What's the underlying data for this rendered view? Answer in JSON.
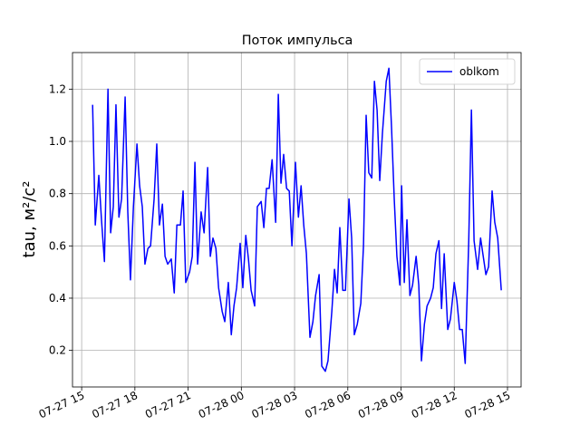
{
  "chart_data": {
    "type": "line",
    "title": "Поток импульса",
    "ylabel": "tau, м²/с²",
    "x": [
      "07-27 15:37",
      "07-27 15:46",
      "07-27 15:58",
      "07-27 16:07",
      "07-27 16:17",
      "07-27 16:29",
      "07-27 16:38",
      "07-27 16:47",
      "07-27 16:56",
      "07-27 17:06",
      "07-27 17:15",
      "07-27 17:27",
      "07-27 17:36",
      "07-27 17:45",
      "07-27 17:55",
      "07-27 18:07",
      "07-27 18:16",
      "07-27 18:25",
      "07-27 18:34",
      "07-27 18:44",
      "07-27 18:53",
      "07-27 19:05",
      "07-27 19:14",
      "07-27 19:23",
      "07-27 19:33",
      "07-27 19:42",
      "07-27 19:51",
      "07-27 20:03",
      "07-27 20:13",
      "07-27 20:22",
      "07-27 20:34",
      "07-27 20:43",
      "07-27 20:52",
      "07-27 21:05",
      "07-27 21:14",
      "07-27 21:23",
      "07-27 21:32",
      "07-27 21:44",
      "07-27 21:54",
      "07-27 22:06",
      "07-27 22:15",
      "07-27 22:24",
      "07-27 22:34",
      "07-27 22:43",
      "07-27 22:55",
      "07-27 23:04",
      "07-27 23:16",
      "07-27 23:26",
      "07-27 23:35",
      "07-27 23:44",
      "07-27 23:56",
      "07-28 00:05",
      "07-28 00:15",
      "07-28 00:24",
      "07-28 00:33",
      "07-28 00:45",
      "07-28 00:54",
      "07-28 01:07",
      "07-28 01:16",
      "07-28 01:25",
      "07-28 01:34",
      "07-28 01:44",
      "07-28 01:56",
      "07-28 02:05",
      "07-28 02:14",
      "07-28 02:23",
      "07-28 02:33",
      "07-28 02:42",
      "07-28 02:51",
      "07-28 03:03",
      "07-28 03:13",
      "07-28 03:22",
      "07-28 03:31",
      "07-28 03:40",
      "07-28 03:52",
      "07-28 04:02",
      "07-28 04:11",
      "07-28 04:23",
      "07-28 04:32",
      "07-28 04:44",
      "07-28 04:53",
      "07-28 05:06",
      "07-28 05:15",
      "07-28 05:24",
      "07-28 05:33",
      "07-28 05:43",
      "07-28 05:52",
      "07-28 06:04",
      "07-28 06:13",
      "07-28 06:22",
      "07-28 06:32",
      "07-28 06:44",
      "07-28 06:53",
      "07-28 07:02",
      "07-28 07:11",
      "07-28 07:21",
      "07-28 07:30",
      "07-28 07:39",
      "07-28 07:48",
      "07-28 07:57",
      "07-28 08:10",
      "07-28 08:19",
      "07-28 08:28",
      "07-28 08:37",
      "07-28 08:46",
      "07-28 08:56",
      "07-28 09:02",
      "07-28 09:11",
      "07-28 09:20",
      "07-28 09:30",
      "07-28 09:39",
      "07-28 09:51",
      "07-28 10:00",
      "07-28 10:09",
      "07-28 10:19",
      "07-28 10:28",
      "07-28 10:40",
      "07-28 10:49",
      "07-28 10:58",
      "07-28 11:08",
      "07-28 11:17",
      "07-28 11:26",
      "07-28 11:38",
      "07-28 11:47",
      "07-28 12:00",
      "07-28 12:09",
      "07-28 12:18",
      "07-28 12:27",
      "07-28 12:37",
      "07-28 12:49",
      "07-28 12:58",
      "07-28 13:07",
      "07-28 13:19",
      "07-28 13:29",
      "07-28 13:38",
      "07-28 13:47",
      "07-28 13:56",
      "07-28 14:08",
      "07-28 14:17",
      "07-28 14:27",
      "07-28 14:39"
    ],
    "series": [
      {
        "name": "oblkom",
        "color": "#0000ff",
        "values": [
          1.14,
          0.68,
          0.87,
          0.7,
          0.54,
          1.2,
          0.65,
          0.75,
          1.14,
          0.71,
          0.78,
          1.17,
          0.73,
          0.47,
          0.75,
          0.99,
          0.83,
          0.75,
          0.53,
          0.59,
          0.6,
          0.78,
          0.99,
          0.68,
          0.76,
          0.56,
          0.53,
          0.55,
          0.42,
          0.68,
          0.68,
          0.81,
          0.46,
          0.5,
          0.56,
          0.92,
          0.53,
          0.73,
          0.65,
          0.9,
          0.56,
          0.63,
          0.59,
          0.44,
          0.35,
          0.31,
          0.46,
          0.26,
          0.37,
          0.44,
          0.61,
          0.44,
          0.64,
          0.55,
          0.43,
          0.37,
          0.75,
          0.77,
          0.67,
          0.82,
          0.82,
          0.93,
          0.69,
          1.18,
          0.84,
          0.95,
          0.82,
          0.81,
          0.6,
          0.92,
          0.71,
          0.83,
          0.68,
          0.57,
          0.25,
          0.31,
          0.41,
          0.49,
          0.14,
          0.12,
          0.16,
          0.35,
          0.51,
          0.42,
          0.67,
          0.43,
          0.43,
          0.78,
          0.63,
          0.26,
          0.3,
          0.38,
          0.6,
          1.1,
          0.88,
          0.86,
          1.23,
          1.12,
          0.85,
          1.03,
          1.23,
          1.28,
          1.05,
          0.78,
          0.56,
          0.45,
          0.83,
          0.46,
          0.7,
          0.41,
          0.45,
          0.56,
          0.45,
          0.16,
          0.3,
          0.37,
          0.4,
          0.44,
          0.57,
          0.62,
          0.36,
          0.57,
          0.28,
          0.32,
          0.46,
          0.39,
          0.28,
          0.28,
          0.15,
          0.62,
          1.12,
          0.62,
          0.51,
          0.63,
          0.56,
          0.49,
          0.52,
          0.81,
          0.69,
          0.63,
          0.43
        ]
      }
    ],
    "xlim": [
      "07-27 14:29",
      "07-28 15:46"
    ],
    "xticks": [
      "07-27 15",
      "07-27 18",
      "07-27 21",
      "07-28 00",
      "07-28 03",
      "07-28 06",
      "07-28 09",
      "07-28 12",
      "07-28 15"
    ],
    "ylim": [
      0.06,
      1.34
    ],
    "yticks": [
      0.2,
      0.4,
      0.6,
      0.8,
      {
        "value": 1,
        "label": "1.0"
      },
      1.2
    ],
    "grid": true,
    "legend": "upper right"
  }
}
